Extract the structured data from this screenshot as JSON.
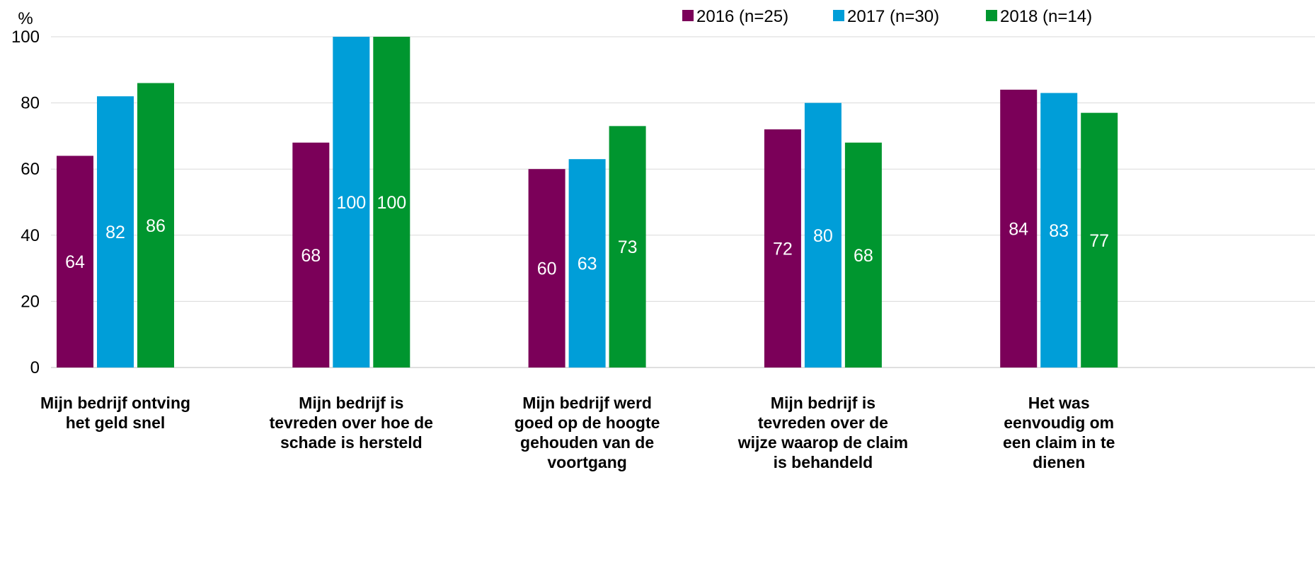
{
  "chart_data": {
    "type": "bar",
    "ylabel": "%",
    "ylim": [
      0,
      100
    ],
    "yticks": [
      0,
      20,
      40,
      60,
      80,
      100
    ],
    "grid": true,
    "legend_position": "top-right",
    "categories": [
      [
        "Mijn bedrijf ontving",
        "het geld snel"
      ],
      [
        "Mijn bedrijf is",
        "tevreden over hoe de",
        "schade is hersteld"
      ],
      [
        "Mijn bedrijf werd",
        "goed op de hoogte",
        "gehouden van de",
        "voortgang"
      ],
      [
        "Mijn bedrijf is",
        "tevreden over de",
        "wijze waarop de claim",
        "is behandeld"
      ],
      [
        "Het was",
        "eenvoudig om",
        "een claim in te",
        "dienen"
      ]
    ],
    "series": [
      {
        "name": "2016 (n=25)",
        "color": "#7b0059",
        "values": [
          64,
          68,
          60,
          72,
          84
        ]
      },
      {
        "name": "2017 (n=30)",
        "color": "#009ed8",
        "values": [
          82,
          100,
          63,
          80,
          83
        ]
      },
      {
        "name": "2018 (n=14)",
        "color": "#00962f",
        "values": [
          86,
          100,
          73,
          68,
          77
        ]
      }
    ]
  }
}
